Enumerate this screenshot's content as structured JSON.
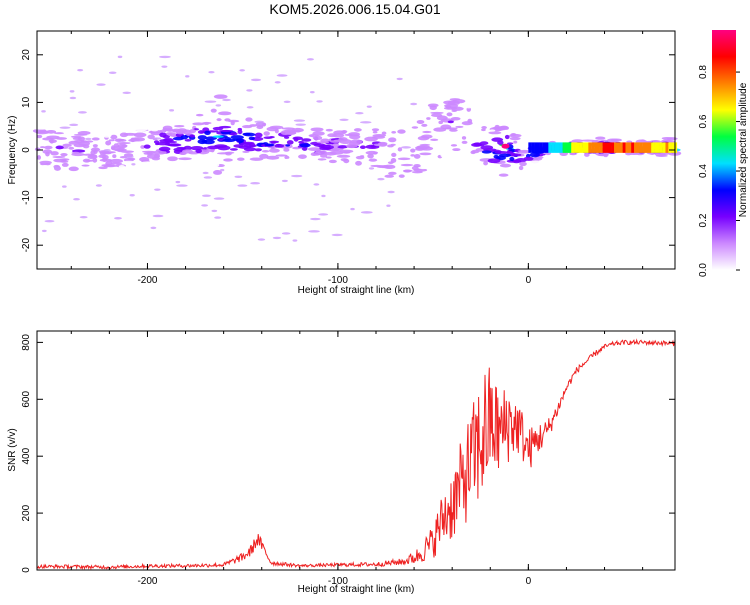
{
  "title": "KOM5.2026.006.15.04.G01",
  "colorbar": {
    "label": "Normalized spectral amplitude",
    "ticks": [
      0.0,
      0.2,
      0.4,
      0.6,
      0.8
    ],
    "tick_labels": [
      "0.0",
      "0.2",
      "0.4",
      "0.6",
      "0.8"
    ],
    "range": [
      0,
      0.97
    ],
    "colors": [
      "#ffffff",
      "#cc88ff",
      "#7700ff",
      "#0000ff",
      "#00e0ff",
      "#00ff40",
      "#ffff00",
      "#ff8000",
      "#ff0000",
      "#ff0080"
    ]
  },
  "chart_data": [
    {
      "type": "heatmap",
      "title": "KOM5.2026.006.15.04.G01",
      "xlabel": "Height of straight line (km)",
      "ylabel": "Frequency (Hz)",
      "xlim": [
        -258,
        77
      ],
      "ylim": [
        -25,
        25
      ],
      "xticks": [
        -200,
        -100,
        0
      ],
      "xtick_labels": [
        "-200",
        "-100",
        "0"
      ],
      "yticks": [
        -20,
        -10,
        0,
        10,
        20
      ],
      "ytick_labels": [
        "-20",
        "-10",
        "0",
        "10",
        "20"
      ],
      "ridge": {
        "x": [
          -258,
          -240,
          -220,
          -200,
          -180,
          -160,
          -140,
          -120,
          -100,
          -80,
          -70,
          -60,
          -50,
          -40,
          -30,
          -20,
          -12,
          -5,
          0,
          10,
          20,
          30,
          40,
          50,
          60,
          77
        ],
        "y": [
          1,
          0,
          0,
          1,
          2,
          3,
          2,
          1,
          1,
          1,
          -2,
          1,
          4,
          6,
          3,
          -1,
          1,
          -2,
          -1,
          0.5,
          0.5,
          0.5,
          0.5,
          0.5,
          0.5,
          0.5
        ],
        "spread": [
          4,
          4,
          4,
          3,
          3,
          3,
          3,
          3,
          3,
          4,
          5,
          6,
          7,
          6,
          5,
          3,
          2,
          2,
          1.5,
          1,
          0.8,
          0.8,
          0.8,
          0.8,
          0.8,
          0.8
        ],
        "amplitude": [
          0.15,
          0.15,
          0.15,
          0.2,
          0.3,
          0.4,
          0.3,
          0.25,
          0.2,
          0.2,
          0.15,
          0.15,
          0.15,
          0.15,
          0.15,
          0.3,
          0.9,
          0.3,
          0.3,
          0.4,
          0.6,
          0.8,
          0.9,
          0.85,
          0.8,
          0.7
        ]
      }
    },
    {
      "type": "line",
      "xlabel": "Height of straight line (km)",
      "ylabel": "SNR (v/v)",
      "xlim": [
        -258,
        77
      ],
      "ylim": [
        0,
        840
      ],
      "xticks": [
        -200,
        -100,
        0
      ],
      "xtick_labels": [
        "-200",
        "-100",
        "0"
      ],
      "yticks": [
        0,
        200,
        400,
        600,
        800
      ],
      "ytick_labels": [
        "0",
        "200",
        "400",
        "600",
        "800"
      ],
      "color": "#ee2222",
      "series": [
        {
          "name": "SNR",
          "x": [
            -258,
            -240,
            -220,
            -200,
            -180,
            -160,
            -150,
            -146,
            -142,
            -135,
            -120,
            -100,
            -80,
            -65,
            -58,
            -50,
            -45,
            -40,
            -35,
            -30,
            -25,
            -22,
            -20,
            -15,
            -10,
            -5,
            0,
            5,
            10,
            15,
            20,
            25,
            30,
            35,
            40,
            45,
            50,
            60,
            70,
            77
          ],
          "y": [
            12,
            12,
            10,
            14,
            15,
            18,
            45,
            65,
            110,
            25,
            15,
            18,
            20,
            30,
            50,
            100,
            180,
            230,
            300,
            380,
            450,
            500,
            520,
            480,
            520,
            500,
            420,
            460,
            490,
            560,
            640,
            700,
            730,
            760,
            785,
            795,
            800,
            800,
            798,
            795
          ],
          "noise": [
            6,
            6,
            6,
            6,
            6,
            7,
            15,
            20,
            25,
            8,
            5,
            6,
            8,
            12,
            30,
            60,
            100,
            130,
            160,
            190,
            230,
            240,
            200,
            160,
            140,
            100,
            80,
            60,
            40,
            25,
            15,
            12,
            10,
            10,
            8,
            8,
            8,
            8,
            8,
            8
          ]
        }
      ],
      "annotations": [
        {
          "x": -144,
          "y": 120,
          "label": ""
        },
        {
          "x": -22,
          "y": 840,
          "label": ""
        }
      ]
    }
  ]
}
